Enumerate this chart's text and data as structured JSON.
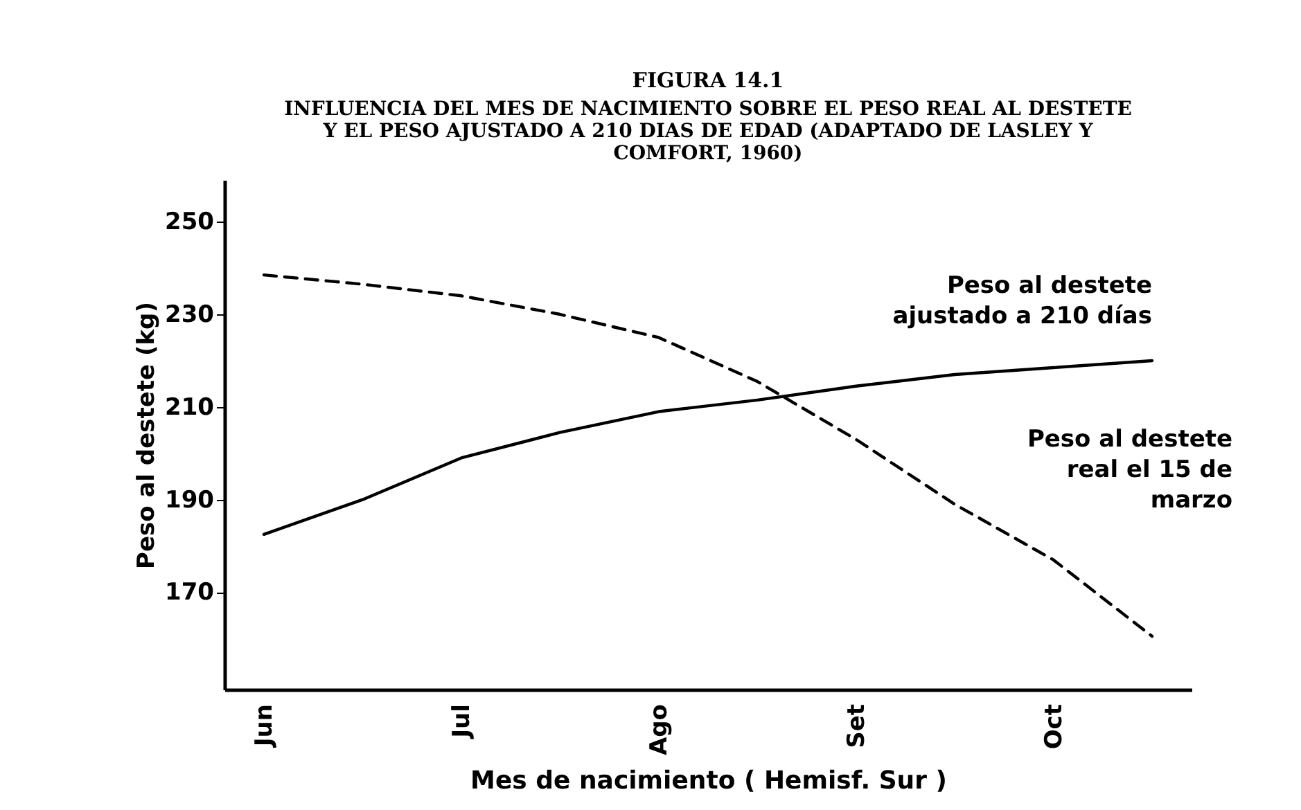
{
  "chart_data": {
    "type": "line",
    "title": "FIGURA 14.1",
    "subtitle": "INFLUENCIA DEL MES DE NACIMIENTO SOBRE EL PESO REAL AL DESTETE Y EL PESO AJUSTADO A 210 DIAS DE EDAD (ADAPTADO DE LASLEY Y COMFORT, 1960)",
    "xlabel": "Mes de nacimiento ( Hemisf. Sur )",
    "ylabel": "Peso al destete (kg)",
    "categories": [
      "Jun",
      null,
      "Jul",
      null,
      "Ago",
      null,
      "Set",
      null,
      "Oct",
      null
    ],
    "series": [
      {
        "name": "Peso al destete ajustado a 210 días",
        "color": "#000000",
        "line_style": "solid",
        "values": [
          182.5,
          190,
          199,
          204.5,
          209,
          211.5,
          214.5,
          217,
          218.5,
          220
        ]
      },
      {
        "name": "Peso al destete real el 15 de marzo",
        "color": "#000000",
        "line_style": "dashed",
        "values": [
          238.5,
          236.5,
          234,
          230,
          225,
          215.5,
          203,
          189,
          177,
          160.5
        ]
      }
    ],
    "ylim": [
      149,
      259
    ],
    "yticks": [
      170,
      190,
      210,
      230,
      250
    ],
    "grid": false,
    "legend": false,
    "marker": "none"
  }
}
